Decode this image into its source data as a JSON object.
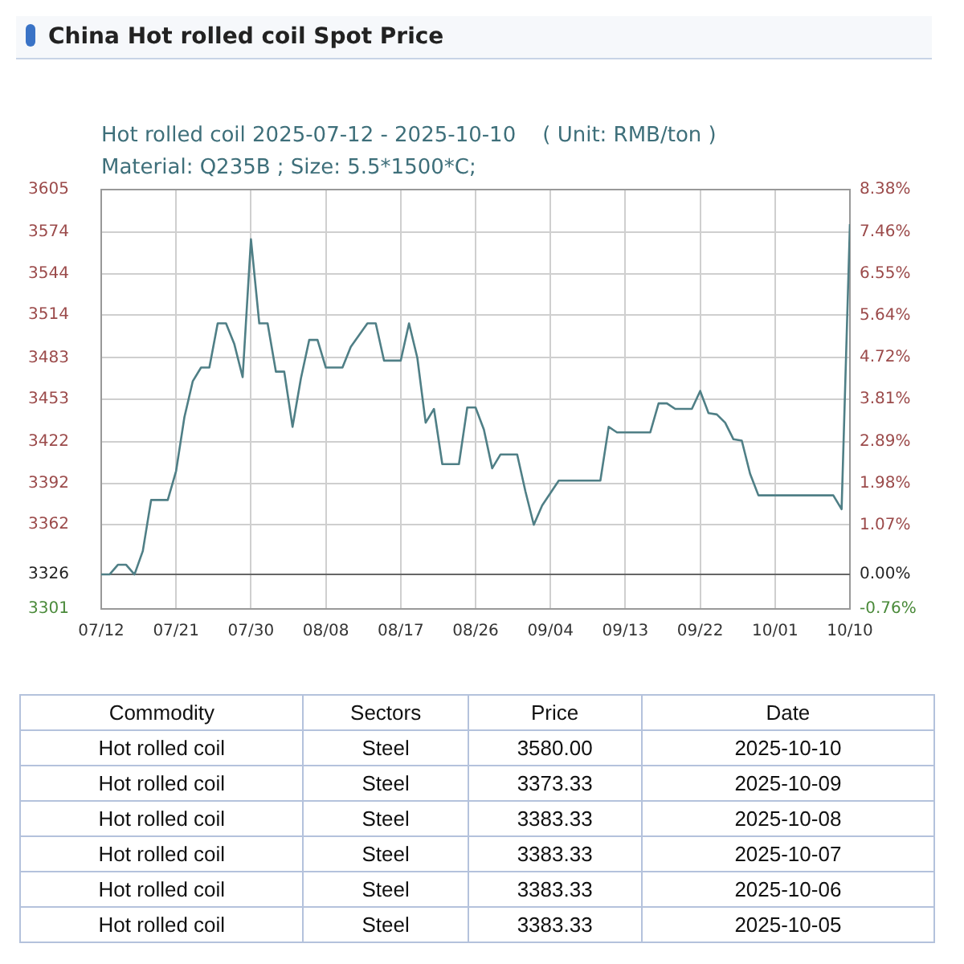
{
  "chart_data": {
    "type": "line",
    "title": "China Hot rolled coil Spot Price",
    "subtitle": "Hot rolled coil 2025-07-12 - 2025-10-10    ( Unit: RMB/ton )",
    "annotations": [
      "Material: Q235B ; Size: 5.5*1500*C;",
      "Commodity",
      "Sectors",
      "Price",
      "Date",
      "Hot rolled coil",
      "Steel",
      "3580.00",
      "2025-10-10",
      "Hot rolled coil",
      "Steel",
      "3373.33",
      "2025-10-09",
      "Hot rolled coil",
      "Steel",
      "3383.33",
      "2025-10-08",
      "Hot rolled coil",
      "Steel",
      "3383.33",
      "2025-10-07",
      "Hot rolled coil",
      "Steel",
      "3383.33",
      "2025-10-06",
      "Hot rolled coil",
      "Steel",
      "3383.33",
      "2025-10-05"
    ],
    "x": [
      "2025-07-12",
      "2025-07-13",
      "2025-07-14",
      "2025-07-15",
      "2025-07-16",
      "2025-07-17",
      "2025-07-18",
      "2025-07-20",
      "2025-07-21",
      "2025-07-22",
      "2025-07-23",
      "2025-07-24",
      "2025-07-25",
      "2025-07-26",
      "2025-07-27",
      "2025-07-28",
      "2025-07-29",
      "2025-07-30",
      "2025-07-31",
      "2025-08-01",
      "2025-08-02",
      "2025-08-03",
      "2025-08-04",
      "2025-08-05",
      "2025-08-06",
      "2025-08-07",
      "2025-08-08",
      "2025-08-10",
      "2025-08-11",
      "2025-08-13",
      "2025-08-14",
      "2025-08-15",
      "2025-08-17",
      "2025-08-18",
      "2025-08-19",
      "2025-08-20",
      "2025-08-21",
      "2025-08-22",
      "2025-08-24",
      "2025-08-25",
      "2025-08-26",
      "2025-08-27",
      "2025-08-28",
      "2025-08-29",
      "2025-08-31",
      "2025-09-01",
      "2025-09-02",
      "2025-09-03",
      "2025-09-05",
      "2025-09-10",
      "2025-09-11",
      "2025-09-12",
      "2025-09-16",
      "2025-09-17",
      "2025-09-18",
      "2025-09-19",
      "2025-09-21",
      "2025-09-22",
      "2025-09-23",
      "2025-09-24",
      "2025-09-25",
      "2025-09-26",
      "2025-09-27",
      "2025-09-28",
      "2025-09-29",
      "2025-10-05",
      "2025-10-06",
      "2025-10-07",
      "2025-10-08",
      "2025-10-09",
      "2025-10-10"
    ],
    "series": [
      {
        "color": "#4f7f86",
        "values": [
          3326,
          3326,
          3333,
          3333,
          3326,
          3343,
          3380,
          3380,
          3401,
          3440,
          3466,
          3476,
          3476,
          3508,
          3508,
          3493,
          3469,
          3569,
          3508,
          3508,
          3473,
          3473,
          3433,
          3468,
          3496,
          3496,
          3476,
          3476,
          3491,
          3508,
          3508,
          3481,
          3481,
          3508,
          3483,
          3436,
          3446,
          3406,
          3406,
          3447,
          3447,
          3431,
          3403,
          3413,
          3413,
          3386,
          3362,
          3376,
          3394,
          3394,
          3433,
          3429,
          3429,
          3450,
          3450,
          3446,
          3446,
          3459,
          3443,
          3442,
          3436,
          3424,
          3423,
          3399,
          3383.33,
          3383.33,
          3383.33,
          3383.33,
          3383.33,
          3373.33,
          3580
        ]
      }
    ],
    "xlim": [
      "2025-07-12",
      "2025-10-10"
    ],
    "xticks": [
      {
        "value": "2025-07-12",
        "label": "07/12"
      },
      {
        "value": "2025-07-21",
        "label": "07/21"
      },
      {
        "value": "2025-07-30",
        "label": "07/30"
      },
      {
        "value": "2025-08-08",
        "label": "08/08"
      },
      {
        "value": "2025-08-17",
        "label": "08/17"
      },
      {
        "value": "2025-08-26",
        "label": "08/26"
      },
      {
        "value": "2025-09-04",
        "label": "09/04"
      },
      {
        "value": "2025-09-13",
        "label": "09/13"
      },
      {
        "value": "2025-09-22",
        "label": "09/22"
      },
      {
        "value": "2025-10-01",
        "label": "10/01"
      },
      {
        "value": "2025-10-10",
        "label": "10/10"
      }
    ],
    "ylim": [
      3301,
      3605
    ],
    "yticks": [
      3301,
      3326,
      3362,
      3392,
      3422,
      3453,
      3483,
      3514,
      3544,
      3574,
      3605
    ],
    "y2lim": [
      -0.76,
      8.38
    ],
    "y2ticks": [
      {
        "value": -0.76,
        "label": "-0.76%"
      },
      {
        "value": 0,
        "label": "0.00%"
      },
      {
        "value": 1.07,
        "label": "1.07%"
      },
      {
        "value": 1.98,
        "label": "1.98%"
      },
      {
        "value": 2.89,
        "label": "2.89%"
      },
      {
        "value": 3.81,
        "label": "3.81%"
      },
      {
        "value": 4.72,
        "label": "4.72%"
      },
      {
        "value": 5.64,
        "label": "5.64%"
      },
      {
        "value": 6.55,
        "label": "6.55%"
      },
      {
        "value": 7.46,
        "label": "7.46%"
      },
      {
        "value": 8.38,
        "label": "8.38%"
      }
    ],
    "ref_lines": [
      {
        "axis": "y",
        "value": 3326,
        "color": "#666666"
      }
    ],
    "grid": true,
    "legend": false,
    "marker": "none",
    "line_style": "solid"
  }
}
